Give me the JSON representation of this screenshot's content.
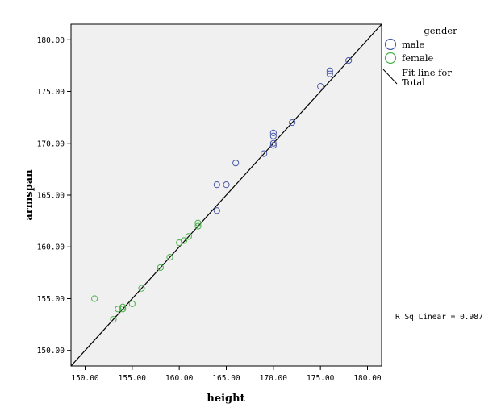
{
  "chart_data": {
    "type": "scatter",
    "xlabel": "height",
    "ylabel": "armspan",
    "xlim": [
      148.5,
      181.5
    ],
    "ylim": [
      148.5,
      181.5
    ],
    "x_ticks": [
      "150.00",
      "155.00",
      "160.00",
      "165.00",
      "170.00",
      "175.00",
      "180.00"
    ],
    "y_ticks": [
      "150.00",
      "155.00",
      "160.00",
      "165.00",
      "170.00",
      "175.00",
      "180.00"
    ],
    "grid": false,
    "plot_background": "#f0f0f0",
    "legend": {
      "title": "gender",
      "placement": "right",
      "entries": [
        {
          "label": "male",
          "marker": "circle",
          "color": "#4a5aa8"
        },
        {
          "label": "female",
          "marker": "circle",
          "color": "#4cb04c"
        }
      ],
      "fit_line_label_1": "Fit line for",
      "fit_line_label_2": "Total"
    },
    "series": [
      {
        "name": "male",
        "color": "#4a5aa8",
        "points": [
          [
            164,
            166
          ],
          [
            165,
            166
          ],
          [
            164,
            163.5
          ],
          [
            166,
            168.1
          ],
          [
            169,
            169
          ],
          [
            170,
            171
          ],
          [
            170,
            170.7
          ],
          [
            170,
            170
          ],
          [
            170,
            169.8
          ],
          [
            172,
            172
          ],
          [
            175,
            175.5
          ],
          [
            176,
            176.7
          ],
          [
            176,
            177
          ],
          [
            178,
            178
          ]
        ]
      },
      {
        "name": "female",
        "color": "#4cb04c",
        "points": [
          [
            151,
            155
          ],
          [
            153,
            153
          ],
          [
            153.5,
            154
          ],
          [
            154,
            154
          ],
          [
            154,
            154.2
          ],
          [
            155,
            154.5
          ],
          [
            156,
            156
          ],
          [
            158,
            158
          ],
          [
            159,
            159
          ],
          [
            160,
            160.4
          ],
          [
            160.5,
            160.6
          ],
          [
            161,
            161
          ],
          [
            162,
            162
          ],
          [
            162,
            162.3
          ]
        ]
      }
    ],
    "fit_line": {
      "label": "Total",
      "slope": 1.0,
      "intercept": 0.0,
      "color": "#000000"
    },
    "annotation": "R Sq Linear = 0.987"
  }
}
